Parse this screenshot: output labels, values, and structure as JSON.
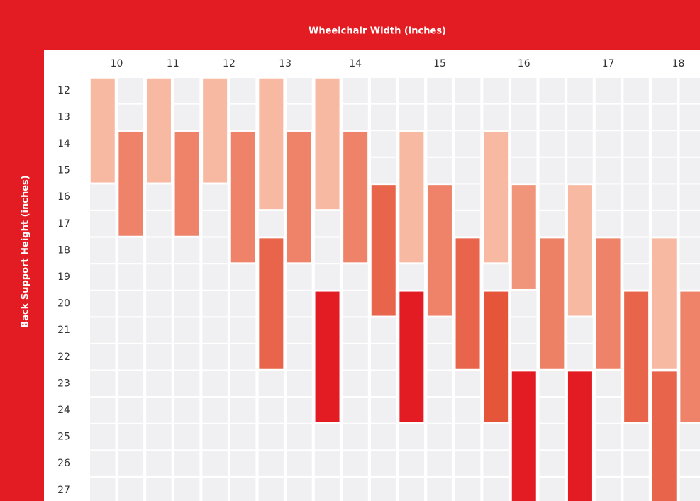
{
  "chart_data": {
    "type": "range-grid",
    "title": "Wheelchair Width (inches)",
    "y_label": "Back Support Height (inches)",
    "yticks": [
      12,
      13,
      14,
      15,
      16,
      17,
      18,
      19,
      20,
      21,
      22,
      23,
      24,
      25,
      26,
      27
    ],
    "columns": [
      {
        "label": 10,
        "lanes": [
          [
            {
              "from": 12,
              "to": 15,
              "color": "#f7b9a2"
            }
          ],
          [
            {
              "from": 14,
              "to": 17,
              "color": "#ee836a"
            }
          ]
        ]
      },
      {
        "label": 11,
        "lanes": [
          [
            {
              "from": 12,
              "to": 15,
              "color": "#f7b9a2"
            }
          ],
          [
            {
              "from": 14,
              "to": 17,
              "color": "#ee836a"
            }
          ]
        ]
      },
      {
        "label": 12,
        "lanes": [
          [
            {
              "from": 12,
              "to": 15,
              "color": "#f7b9a2"
            }
          ],
          [
            {
              "from": 14,
              "to": 18,
              "color": "#ee836a"
            }
          ]
        ]
      },
      {
        "label": 13,
        "lanes": [
          [
            {
              "from": 12,
              "to": 16,
              "color": "#f7b9a2"
            },
            {
              "from": 18,
              "to": 22,
              "color": "#e8644a"
            }
          ],
          [
            {
              "from": 14,
              "to": 18,
              "color": "#ee836a"
            }
          ]
        ]
      },
      {
        "label": 14,
        "lanes": [
          [
            {
              "from": 12,
              "to": 16,
              "color": "#f7b9a2"
            },
            {
              "from": 20,
              "to": 24,
              "color": "#e31c23"
            }
          ],
          [
            {
              "from": 14,
              "to": 18,
              "color": "#ee836a"
            }
          ],
          [
            {
              "from": 16,
              "to": 20,
              "color": "#e8644a"
            }
          ]
        ]
      },
      {
        "label": 15,
        "lanes": [
          [
            {
              "from": 14,
              "to": 18,
              "color": "#f7b9a2"
            },
            {
              "from": 20,
              "to": 24,
              "color": "#e31c23"
            }
          ],
          [
            {
              "from": 16,
              "to": 20,
              "color": "#ee836a"
            }
          ],
          [
            {
              "from": 18,
              "to": 22,
              "color": "#e8644a"
            }
          ]
        ]
      },
      {
        "label": 16,
        "lanes": [
          [
            {
              "from": 14,
              "to": 18,
              "color": "#f7b9a2"
            },
            {
              "from": 20,
              "to": 24,
              "color": "#e5553a"
            }
          ],
          [
            {
              "from": 16,
              "to": 19,
              "color": "#f0957a"
            },
            {
              "from": 23,
              "to": 27,
              "color": "#e31c23"
            }
          ],
          [
            {
              "from": 18,
              "to": 22,
              "color": "#ec8166"
            }
          ]
        ]
      },
      {
        "label": 17,
        "lanes": [
          [
            {
              "from": 16,
              "to": 20,
              "color": "#f7b9a2"
            },
            {
              "from": 23,
              "to": 27,
              "color": "#e31c23"
            }
          ],
          [
            {
              "from": 18,
              "to": 22,
              "color": "#ee836a"
            }
          ],
          [
            {
              "from": 20,
              "to": 24,
              "color": "#e8644a"
            }
          ]
        ]
      },
      {
        "label": 18,
        "lanes": [
          [
            {
              "from": 18,
              "to": 22,
              "color": "#f7b9a2"
            },
            {
              "from": 23,
              "to": 27,
              "color": "#e8644a"
            }
          ],
          [
            {
              "from": 20,
              "to": 24,
              "color": "#ee836a"
            }
          ]
        ]
      }
    ]
  }
}
